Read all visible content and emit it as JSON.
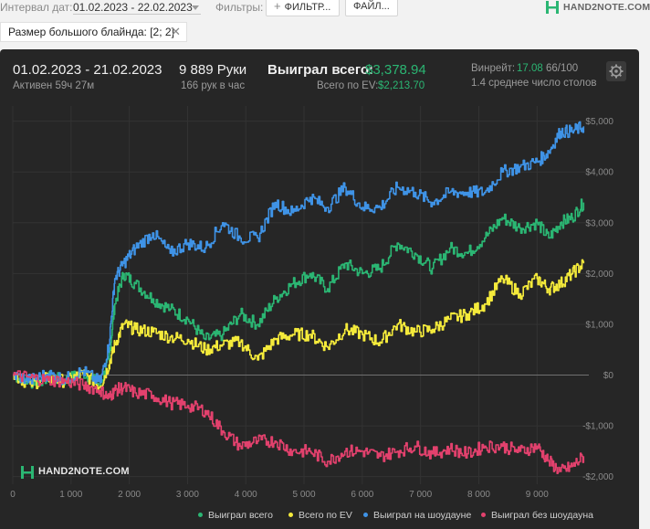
{
  "topbar": {
    "date_label": "Интервал дат:",
    "date_value": "01.02.2023 - 22.02.2023",
    "filters_label": "Фильтры:",
    "filter_button": "ФИЛЬТР...",
    "files_button": "ФАЙЛ...",
    "logo_text": "HAND2NOTE.COM"
  },
  "chip": {
    "label": "Размер большого блайнда: [2; 2]"
  },
  "stats": {
    "period": "01.02.2023 - 21.02.2023",
    "active": "Активен 59ч 27м",
    "hands": "9 889 Руки",
    "per_hour": "166 рук в час",
    "won_label": "Выиграл всего:",
    "won_value": "$3,378.94",
    "ev_label": "Всего по EV:",
    "ev_value": "$2,213.70",
    "winrate_label": "Винрейт:",
    "winrate_value": "17.08",
    "winrate_suffix": "66/100",
    "tables": "1.4 среднее число столов"
  },
  "watermark": "HAND2NOTE.COM",
  "colors": {
    "green": "#2bb673",
    "yellow": "#f4ea3b",
    "blue": "#3f93e6",
    "pink": "#e2416d",
    "panel": "#262626"
  },
  "chart_data": {
    "type": "line",
    "xlim": [
      0,
      9889
    ],
    "ylim": [
      -2150,
      5300
    ],
    "x_ticks": [
      0,
      1000,
      2000,
      3000,
      4000,
      5000,
      6000,
      7000,
      8000,
      9000
    ],
    "x_tick_labels": [
      "0",
      "1 000",
      "2 000",
      "3 000",
      "4 000",
      "5 000",
      "6 000",
      "7 000",
      "8 000",
      "9 000"
    ],
    "y_ticks": [
      -2000,
      -1000,
      0,
      1000,
      2000,
      3000,
      4000,
      5000
    ],
    "y_tick_labels": [
      "-$2,000",
      "-$1,000",
      "$0",
      "$1,000",
      "$2,000",
      "$3,000",
      "$4,000",
      "$5,000"
    ],
    "x": [
      0,
      300,
      600,
      900,
      1200,
      1500,
      1650,
      1750,
      1900,
      2100,
      2400,
      2700,
      3000,
      3300,
      3600,
      3900,
      4200,
      4500,
      4800,
      5100,
      5400,
      5700,
      6000,
      6300,
      6600,
      6900,
      7200,
      7500,
      7800,
      8100,
      8400,
      8700,
      9000,
      9200,
      9400,
      9600,
      9800
    ],
    "series": [
      {
        "name": "Выиграл всего",
        "color": "#2bb673",
        "values": [
          0,
          -150,
          -50,
          -100,
          50,
          -200,
          300,
          1400,
          2000,
          1800,
          1500,
          1300,
          1100,
          700,
          800,
          1200,
          1000,
          1500,
          1800,
          2000,
          1700,
          2200,
          2000,
          2100,
          2600,
          2400,
          2100,
          2500,
          2400,
          2700,
          3100,
          2900,
          3000,
          2700,
          3000,
          3100,
          3400
        ]
      },
      {
        "name": "Всего по EV",
        "color": "#f4ea3b",
        "values": [
          0,
          -180,
          -60,
          -120,
          30,
          -220,
          200,
          600,
          1000,
          900,
          850,
          750,
          700,
          500,
          600,
          650,
          300,
          700,
          800,
          800,
          550,
          900,
          800,
          650,
          1000,
          850,
          900,
          1100,
          1200,
          1400,
          1900,
          1600,
          1900,
          1700,
          1800,
          2000,
          2200
        ]
      },
      {
        "name": "Выиграл на шоудауне",
        "color": "#3f93e6",
        "values": [
          0,
          -100,
          20,
          -80,
          80,
          -150,
          600,
          1900,
          2200,
          2500,
          2800,
          2400,
          2600,
          2500,
          3000,
          2700,
          2700,
          3400,
          3200,
          3500,
          3300,
          3700,
          3300,
          3300,
          3700,
          3600,
          3400,
          3600,
          3600,
          3600,
          4000,
          4100,
          4200,
          4400,
          4800,
          4800,
          4900
        ]
      },
      {
        "name": "Выиграл без шоудауна",
        "color": "#e2416d",
        "values": [
          0,
          -50,
          -100,
          -120,
          -200,
          -300,
          -450,
          -300,
          -250,
          -350,
          -400,
          -550,
          -600,
          -700,
          -1100,
          -1400,
          -1300,
          -1300,
          -1500,
          -1500,
          -1700,
          -1500,
          -1500,
          -1600,
          -1500,
          -1400,
          -1550,
          -1450,
          -1550,
          -1400,
          -1400,
          -1500,
          -1400,
          -1700,
          -1900,
          -1800,
          -1600
        ]
      }
    ]
  }
}
